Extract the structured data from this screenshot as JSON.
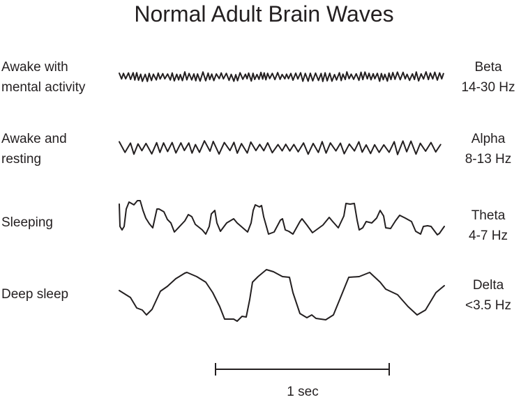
{
  "title": "Normal Adult Brain Waves",
  "rows": [
    {
      "state": [
        "Awake with",
        "mental activity"
      ],
      "band": "Beta",
      "range": "14-30 Hz"
    },
    {
      "state": [
        "Awake and",
        "resting"
      ],
      "band": "Alpha",
      "range": "8-13 Hz"
    },
    {
      "state": [
        "Sleeping"
      ],
      "band": "Theta",
      "range": "4-7 Hz"
    },
    {
      "state": [
        "Deep sleep"
      ],
      "band": "Delta",
      "range": "<3.5 Hz"
    }
  ],
  "scale_bar": {
    "label": "1 sec"
  },
  "line_color": "#231f20"
}
